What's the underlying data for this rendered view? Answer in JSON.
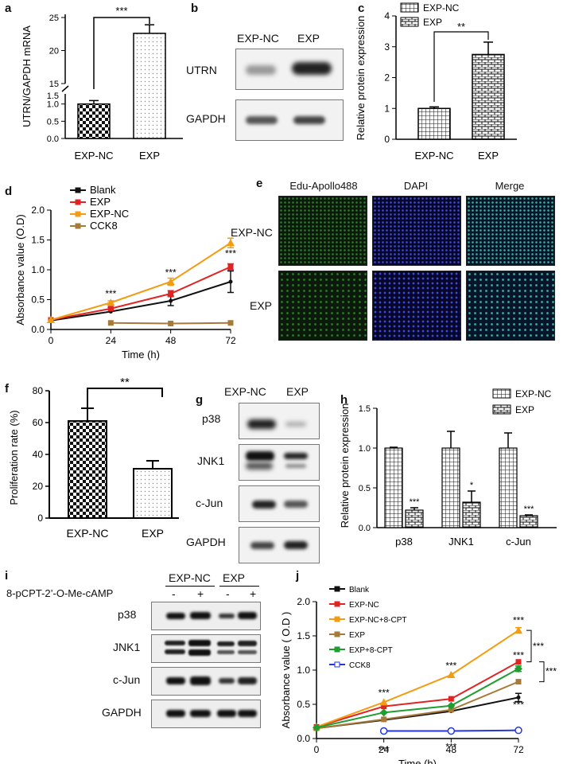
{
  "panels": {
    "a": "a",
    "b": "b",
    "c": "c",
    "d": "d",
    "e": "e",
    "f": "f",
    "g": "g",
    "h": "h",
    "i": "i",
    "j": "j"
  },
  "colors": {
    "red": "#e02424",
    "orange": "#f39c12",
    "brown": "#a87a3a",
    "green": "#1f9e2f",
    "blue": "#2436e0",
    "black": "#111111"
  },
  "sig": {
    "three": "***",
    "two": "**",
    "one": "*"
  },
  "panel_b": {
    "lanes": [
      "EXP-NC",
      "EXP"
    ],
    "rows": [
      "UTRN",
      "GAPDH"
    ]
  },
  "panel_e": {
    "cols": [
      "Edu-Apollo488",
      "DAPI",
      "Merge"
    ],
    "rows": [
      "EXP-NC",
      "EXP"
    ]
  },
  "panel_g": {
    "lanes": [
      "EXP-NC",
      "EXP"
    ],
    "rows": [
      "p38",
      "JNK1",
      "c-Jun",
      "GAPDH"
    ]
  },
  "panel_i": {
    "treatment": "8-pCPT-2’-O-Me-cAMP",
    "groups": [
      "EXP-NC",
      "EXP"
    ],
    "signs": [
      "-",
      "+",
      "-",
      "+"
    ],
    "rows": [
      "p38",
      "JNK1",
      "c-Jun",
      "GAPDH"
    ]
  },
  "chart_data": [
    {
      "id": "a",
      "type": "bar",
      "categories": [
        "EXP-NC",
        "EXP"
      ],
      "values": [
        1.0,
        22.6
      ],
      "errors": [
        0.1,
        1.3
      ],
      "ylabel": "UTRN/GAPDH mRNA",
      "broken_axis": true,
      "yticks_low": [
        "0.0",
        "0.5",
        "1.0"
      ],
      "yticks_high": [
        "15",
        "20",
        "25"
      ],
      "ytick_extra": "1.5",
      "significance": "***"
    },
    {
      "id": "c",
      "type": "bar",
      "categories": [
        "EXP-NC",
        "EXP"
      ],
      "values": [
        1.0,
        2.75
      ],
      "errors": [
        0.05,
        0.4
      ],
      "ylabel": "Relative protein expression",
      "ylim": [
        0,
        4
      ],
      "yticks": [
        "0",
        "1",
        "2",
        "3",
        "4"
      ],
      "legend": [
        "EXP-NC",
        "EXP"
      ],
      "significance": "**"
    },
    {
      "id": "d",
      "type": "line",
      "xlabel": "Time (h)",
      "ylabel": "Absorbance value (O.D)",
      "x": [
        0,
        24,
        48,
        72
      ],
      "xlim": [
        0,
        72
      ],
      "ylim": [
        0,
        2.0
      ],
      "yticks": [
        "0.0",
        "0.5",
        "1.0",
        "1.5",
        "2.0"
      ],
      "xticks": [
        "0",
        "24",
        "48",
        "72"
      ],
      "series": [
        {
          "name": "Blank",
          "color": "black",
          "values": [
            0.15,
            0.3,
            0.48,
            0.8
          ],
          "errors": [
            0,
            0,
            0.08,
            0.18
          ]
        },
        {
          "name": "EXP",
          "color": "red",
          "values": [
            0.16,
            0.35,
            0.6,
            1.05
          ],
          "errors": [
            0,
            0.02,
            0.05,
            0.05
          ]
        },
        {
          "name": "EXP-NC",
          "color": "orange",
          "values": [
            0.16,
            0.45,
            0.8,
            1.45
          ],
          "errors": [
            0,
            0.03,
            0.06,
            0.08
          ]
        },
        {
          "name": "CCK8",
          "color": "brown",
          "values": [
            null,
            0.11,
            0.1,
            0.11
          ],
          "errors": [
            0,
            0,
            0,
            0
          ]
        }
      ],
      "annotations": [
        "***",
        "***",
        "***"
      ]
    },
    {
      "id": "f",
      "type": "bar",
      "categories": [
        "EXP-NC",
        "EXP"
      ],
      "values": [
        61,
        31
      ],
      "errors": [
        8,
        5
      ],
      "ylabel": "Proliferation rate (%)",
      "ylim": [
        0,
        80
      ],
      "yticks": [
        "0",
        "20",
        "40",
        "60",
        "80"
      ],
      "significance": "**"
    },
    {
      "id": "h",
      "type": "bar",
      "categories": [
        "p38",
        "JNK1",
        "c-Jun"
      ],
      "ylabel": "Relative protein expression",
      "ylim": [
        0,
        1.5
      ],
      "yticks": [
        "0.0",
        "0.5",
        "1.0",
        "1.5"
      ],
      "series": [
        {
          "name": "EXP-NC",
          "values": [
            1.0,
            1.0,
            1.0
          ],
          "errors": [
            0.01,
            0.21,
            0.19
          ]
        },
        {
          "name": "EXP",
          "values": [
            0.22,
            0.32,
            0.15
          ],
          "errors": [
            0.03,
            0.14,
            0.01
          ]
        }
      ],
      "significance": [
        "***",
        "*",
        "***"
      ]
    },
    {
      "id": "j",
      "type": "line",
      "xlabel": "Time (h)",
      "ylabel": "Absorbance value ( O.D )",
      "x": [
        0,
        24,
        48,
        72
      ],
      "xlim": [
        0,
        72
      ],
      "ylim": [
        0,
        2.0
      ],
      "yticks": [
        "0.0",
        "0.5",
        "1.0",
        "1.5",
        "2.0"
      ],
      "xticks": [
        "0",
        "24",
        "48",
        "72"
      ],
      "series": [
        {
          "name": "Blank",
          "color": "black",
          "values": [
            0.15,
            0.27,
            0.4,
            0.6
          ],
          "errors": [
            0,
            0,
            0,
            0.06
          ]
        },
        {
          "name": "EXP-NC",
          "color": "red",
          "values": [
            0.17,
            0.47,
            0.58,
            1.12
          ],
          "errors": [
            0,
            0,
            0,
            0
          ]
        },
        {
          "name": "EXP-NC+8-CPT",
          "color": "orange",
          "values": [
            0.17,
            0.53,
            0.93,
            1.58
          ],
          "errors": [
            0,
            0,
            0,
            0.04
          ]
        },
        {
          "name": "EXP",
          "color": "brown",
          "values": [
            0.15,
            0.28,
            0.42,
            0.83
          ],
          "errors": [
            0,
            0,
            0,
            0
          ]
        },
        {
          "name": "EXP+8-CPT",
          "color": "green",
          "values": [
            0.16,
            0.38,
            0.48,
            1.02
          ],
          "errors": [
            0,
            0,
            0,
            0.04
          ]
        },
        {
          "name": "CCK8",
          "color": "blue",
          "values": [
            null,
            0.11,
            0.11,
            0.12
          ],
          "errors": [
            0,
            0,
            0,
            0
          ]
        }
      ],
      "annotations": [
        "***",
        "***",
        "***",
        "***",
        "***",
        "***",
        "***",
        "***"
      ]
    }
  ]
}
